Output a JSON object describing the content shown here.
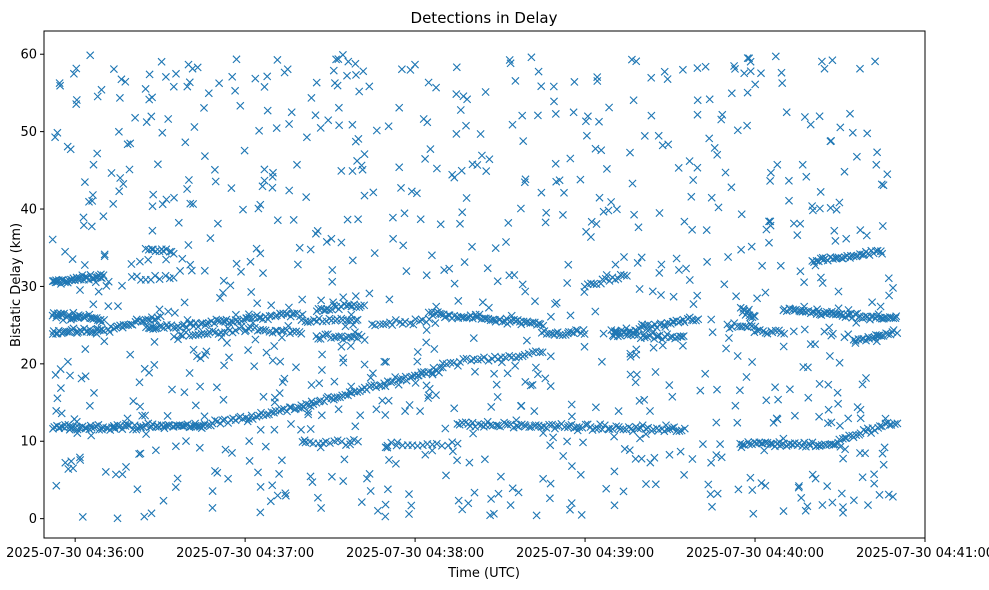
{
  "chart_data": {
    "type": "scatter",
    "title": "Detections in Delay",
    "xlabel": "Time (UTC)",
    "ylabel": "Bistatic Delay (km)",
    "marker": "x",
    "color": "#1f77b4",
    "grid": false,
    "legend": "none",
    "xlim": [
      "2025-07-30 04:35:49",
      "2025-07-30 04:41:00"
    ],
    "ylim": [
      -2.5,
      63
    ],
    "xticks": [
      "2025-07-30 04:36:00",
      "2025-07-30 04:37:00",
      "2025-07-30 04:38:00",
      "2025-07-30 04:39:00",
      "2025-07-30 04:40:00",
      "2025-07-30 04:41:00"
    ],
    "yticks": [
      0,
      10,
      20,
      30,
      40,
      50,
      60
    ],
    "time_range": [
      "2025-07-30 04:35:52",
      "2025-07-30 04:40:50"
    ],
    "tracks": [
      {
        "from": [
          "2025-07-30 04:35:52",
          30.5
        ],
        "to": [
          "2025-07-30 04:36:10",
          31.4
        ],
        "count": 40
      },
      {
        "from": [
          "2025-07-30 04:35:52",
          26.3
        ],
        "to": [
          "2025-07-30 04:36:10",
          25.8
        ],
        "count": 35
      },
      {
        "from": [
          "2025-07-30 04:35:52",
          24.1
        ],
        "to": [
          "2025-07-30 04:36:10",
          24.3
        ],
        "count": 30
      },
      {
        "from": [
          "2025-07-30 04:36:12",
          24.5
        ],
        "to": [
          "2025-07-30 04:36:30",
          26.0
        ],
        "count": 25
      },
      {
        "from": [
          "2025-07-30 04:35:52",
          11.8
        ],
        "to": [
          "2025-07-30 04:36:45",
          12.0
        ],
        "count": 80
      },
      {
        "from": [
          "2025-07-30 04:36:45",
          12.0
        ],
        "to": [
          "2025-07-30 04:37:20",
          14.5
        ],
        "count": 40
      },
      {
        "from": [
          "2025-07-30 04:37:20",
          14.5
        ],
        "to": [
          "2025-07-30 04:38:10",
          19.5
        ],
        "count": 60
      },
      {
        "from": [
          "2025-07-30 04:38:10",
          20.0
        ],
        "to": [
          "2025-07-30 04:38:45",
          21.5
        ],
        "count": 30
      },
      {
        "from": [
          "2025-07-30 04:36:25",
          34.8
        ],
        "to": [
          "2025-07-30 04:36:35",
          34.5
        ],
        "count": 12
      },
      {
        "from": [
          "2025-07-30 04:36:20",
          31.2
        ],
        "to": [
          "2025-07-30 04:36:35",
          31.0
        ],
        "count": 10
      },
      {
        "from": [
          "2025-07-30 04:36:25",
          24.5
        ],
        "to": [
          "2025-07-30 04:37:20",
          26.5
        ],
        "count": 70
      },
      {
        "from": [
          "2025-07-30 04:36:35",
          23.5
        ],
        "to": [
          "2025-07-30 04:37:00",
          24.5
        ],
        "count": 25
      },
      {
        "from": [
          "2025-07-30 04:37:00",
          24.5
        ],
        "to": [
          "2025-07-30 04:37:20",
          24.0
        ],
        "count": 20
      },
      {
        "from": [
          "2025-07-30 04:37:25",
          27.0
        ],
        "to": [
          "2025-07-30 04:37:42",
          27.5
        ],
        "count": 20
      },
      {
        "from": [
          "2025-07-30 04:37:25",
          23.5
        ],
        "to": [
          "2025-07-30 04:37:42",
          23.3
        ],
        "count": 20
      },
      {
        "from": [
          "2025-07-30 04:37:20",
          25.5
        ],
        "to": [
          "2025-07-30 04:37:40",
          25.7
        ],
        "count": 20
      },
      {
        "from": [
          "2025-07-30 04:37:45",
          25.0
        ],
        "to": [
          "2025-07-30 04:38:05",
          25.5
        ],
        "count": 18
      },
      {
        "from": [
          "2025-07-30 04:38:05",
          26.5
        ],
        "to": [
          "2025-07-30 04:38:45",
          25.2
        ],
        "count": 55
      },
      {
        "from": [
          "2025-07-30 04:37:20",
          10.0
        ],
        "to": [
          "2025-07-30 04:37:40",
          9.8
        ],
        "count": 15
      },
      {
        "from": [
          "2025-07-30 04:37:50",
          9.5
        ],
        "to": [
          "2025-07-30 04:38:15",
          9.8
        ],
        "count": 15
      },
      {
        "from": [
          "2025-07-30 04:38:15",
          12.2
        ],
        "to": [
          "2025-07-30 04:39:35",
          11.5
        ],
        "count": 90
      },
      {
        "from": [
          "2025-07-30 04:38:45",
          23.8
        ],
        "to": [
          "2025-07-30 04:39:00",
          24.2
        ],
        "count": 20
      },
      {
        "from": [
          "2025-07-30 04:39:00",
          30.0
        ],
        "to": [
          "2025-07-30 04:39:15",
          31.5
        ],
        "count": 15
      },
      {
        "from": [
          "2025-07-30 04:39:10",
          24.0
        ],
        "to": [
          "2025-07-30 04:39:40",
          25.8
        ],
        "count": 40
      },
      {
        "from": [
          "2025-07-30 04:39:10",
          23.8
        ],
        "to": [
          "2025-07-30 04:39:35",
          23.5
        ],
        "count": 30
      },
      {
        "from": [
          "2025-07-30 04:39:50",
          24.8
        ],
        "to": [
          "2025-07-30 04:40:00",
          25.0
        ],
        "count": 12
      },
      {
        "from": [
          "2025-07-30 04:39:55",
          27.0
        ],
        "to": [
          "2025-07-30 04:40:00",
          26.0
        ],
        "count": 12
      },
      {
        "from": [
          "2025-07-30 04:39:55",
          9.8
        ],
        "to": [
          "2025-07-30 04:40:30",
          9.5
        ],
        "count": 45
      },
      {
        "from": [
          "2025-07-30 04:40:00",
          24.2
        ],
        "to": [
          "2025-07-30 04:40:10",
          24.0
        ],
        "count": 12
      },
      {
        "from": [
          "2025-07-30 04:40:10",
          27.0
        ],
        "to": [
          "2025-07-30 04:40:50",
          25.8
        ],
        "count": 60
      },
      {
        "from": [
          "2025-07-30 04:40:20",
          33.3
        ],
        "to": [
          "2025-07-30 04:40:45",
          34.5
        ],
        "count": 35
      },
      {
        "from": [
          "2025-07-30 04:40:30",
          10.2
        ],
        "to": [
          "2025-07-30 04:40:50",
          12.5
        ],
        "count": 25
      },
      {
        "from": [
          "2025-07-30 04:40:35",
          23.0
        ],
        "to": [
          "2025-07-30 04:40:50",
          24.0
        ],
        "count": 20
      }
    ],
    "scatter": {
      "count": 900,
      "range_km": [
        0,
        60
      ]
    }
  }
}
